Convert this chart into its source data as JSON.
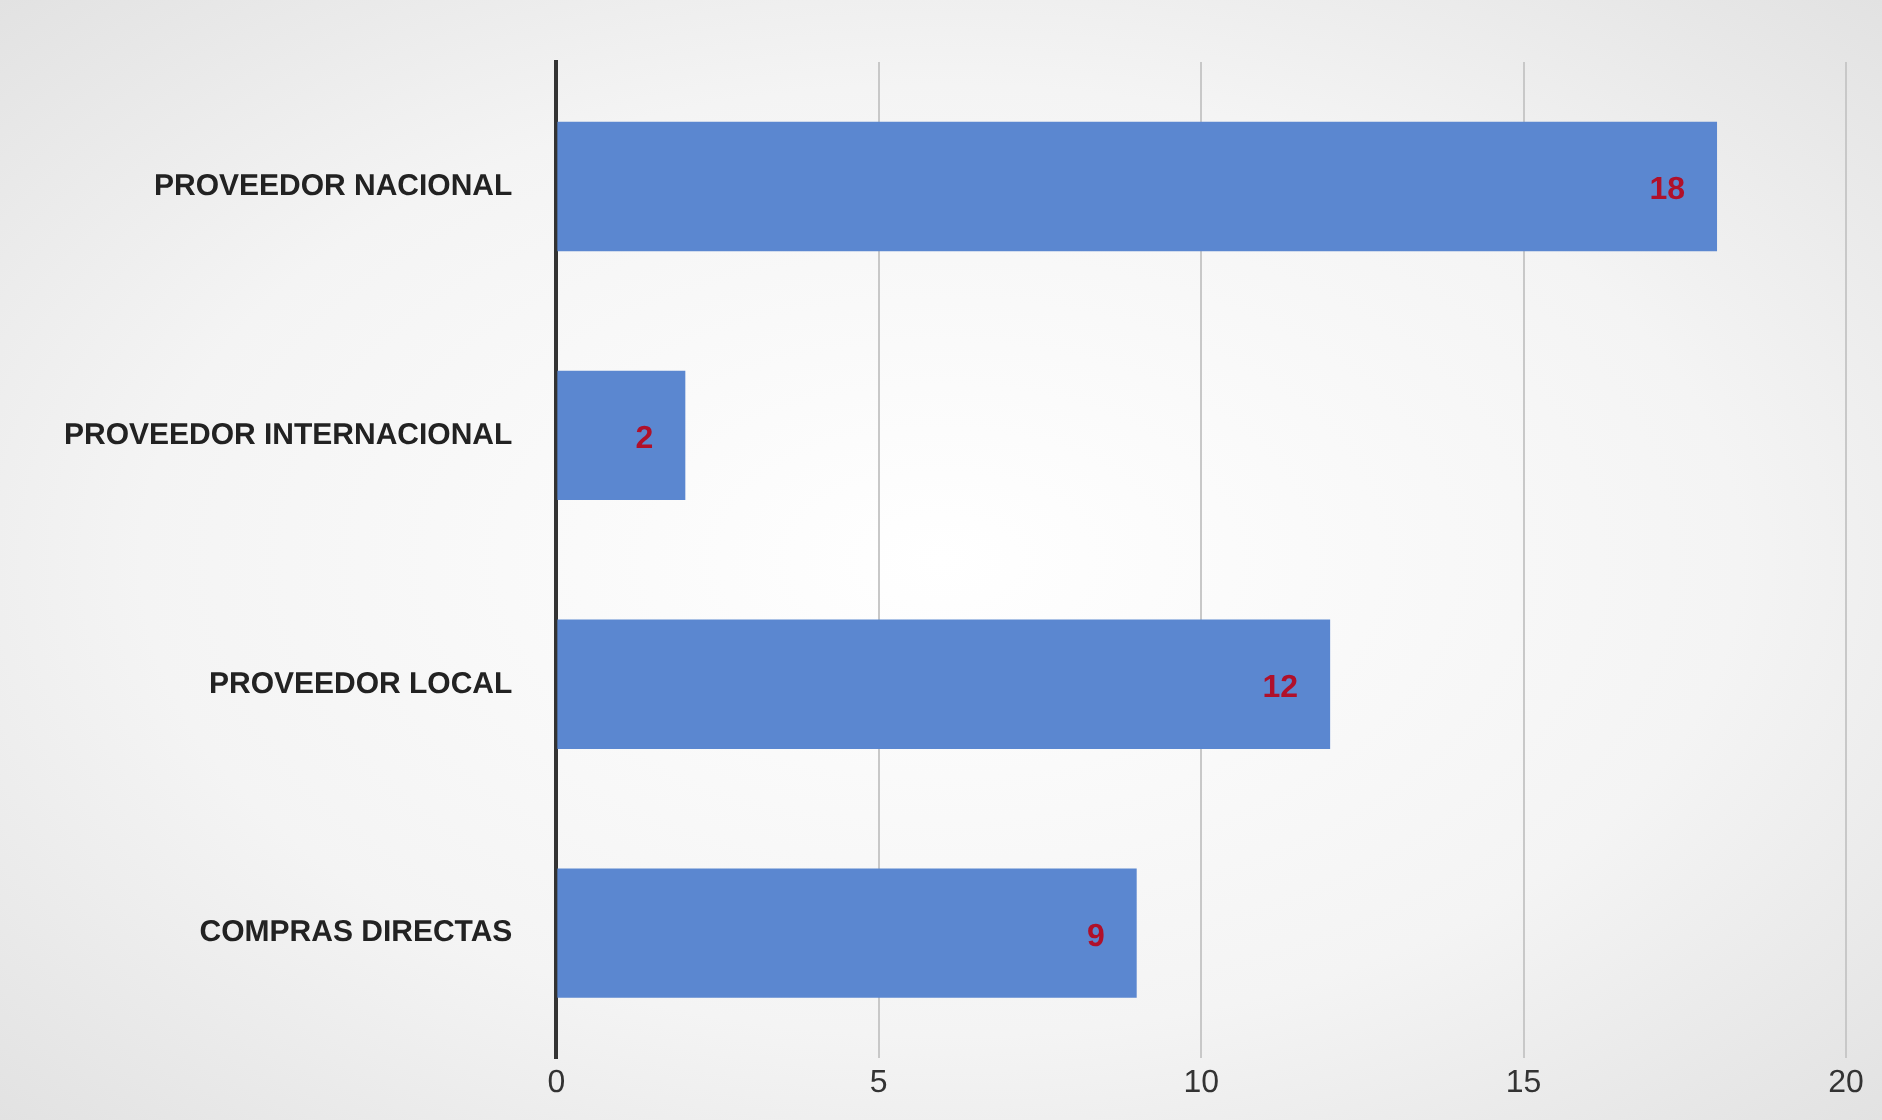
{
  "chart_data": {
    "type": "bar",
    "orientation": "horizontal",
    "categories": [
      "PROVEEDOR NACIONAL",
      "PROVEEDOR INTERNACIONAL",
      "PROVEEDOR LOCAL",
      "COMPRAS DIRECTAS"
    ],
    "values": [
      18,
      2,
      12,
      9
    ],
    "color": "#5b87d0",
    "xlim": [
      0,
      20
    ],
    "xticks": [
      0,
      5,
      10,
      15,
      20
    ],
    "grid": "x",
    "data_labels": true,
    "legend": false
  }
}
